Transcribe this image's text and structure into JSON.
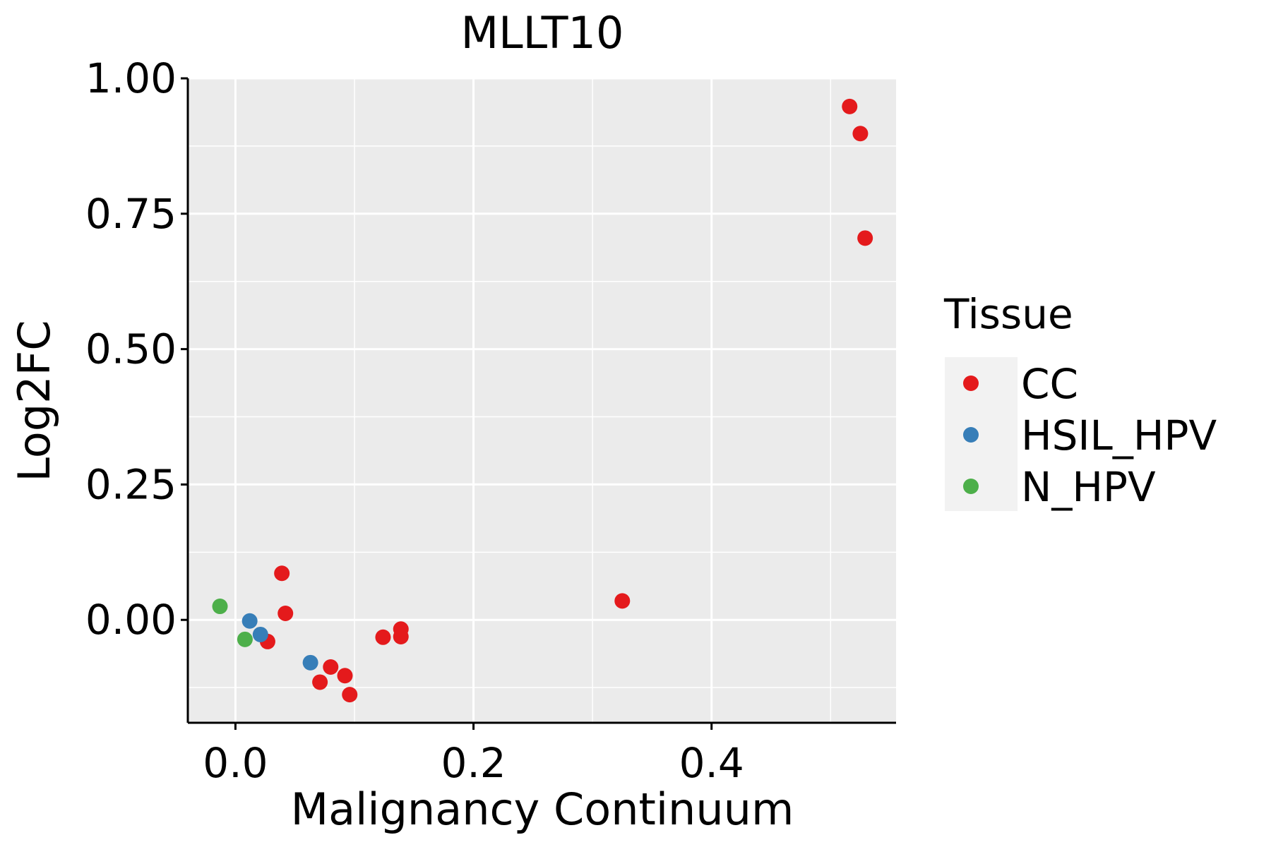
{
  "chart_data": {
    "type": "scatter",
    "title": "MLLT10",
    "xlabel": "Malignancy Continuum",
    "ylabel": "Log2FC",
    "xlim": [
      -0.04,
      0.555
    ],
    "ylim": [
      -0.19,
      1.0
    ],
    "x_ticks": [
      0.0,
      0.2,
      0.4
    ],
    "x_tick_labels": [
      "0.0",
      "0.2",
      "0.4"
    ],
    "y_ticks": [
      0.0,
      0.25,
      0.5,
      0.75,
      1.0
    ],
    "y_tick_labels": [
      "0.00",
      "0.25",
      "0.50",
      "0.75",
      "1.00"
    ],
    "grid": true,
    "legend": {
      "title": "Tissue",
      "position": "right",
      "entries": [
        {
          "name": "CC",
          "color": "#E41A1C"
        },
        {
          "name": "HSIL_HPV",
          "color": "#377EB8"
        },
        {
          "name": "N_HPV",
          "color": "#4DAF4A"
        }
      ]
    },
    "series": [
      {
        "name": "CC",
        "color": "#E41A1C",
        "points": [
          {
            "x": 0.516,
            "y": 0.948
          },
          {
            "x": 0.525,
            "y": 0.898
          },
          {
            "x": 0.529,
            "y": 0.705
          },
          {
            "x": 0.325,
            "y": 0.035
          },
          {
            "x": 0.039,
            "y": 0.086
          },
          {
            "x": 0.042,
            "y": 0.012
          },
          {
            "x": 0.027,
            "y": -0.04
          },
          {
            "x": 0.071,
            "y": -0.115
          },
          {
            "x": 0.08,
            "y": -0.087
          },
          {
            "x": 0.092,
            "y": -0.103
          },
          {
            "x": 0.096,
            "y": -0.138
          },
          {
            "x": 0.124,
            "y": -0.032
          },
          {
            "x": 0.139,
            "y": -0.017
          },
          {
            "x": 0.139,
            "y": -0.031
          }
        ]
      },
      {
        "name": "HSIL_HPV",
        "color": "#377EB8",
        "points": [
          {
            "x": 0.012,
            "y": -0.002
          },
          {
            "x": 0.021,
            "y": -0.027
          },
          {
            "x": 0.063,
            "y": -0.079
          }
        ]
      },
      {
        "name": "N_HPV",
        "color": "#4DAF4A",
        "points": [
          {
            "x": -0.013,
            "y": 0.025
          },
          {
            "x": 0.008,
            "y": -0.036
          }
        ]
      }
    ]
  }
}
